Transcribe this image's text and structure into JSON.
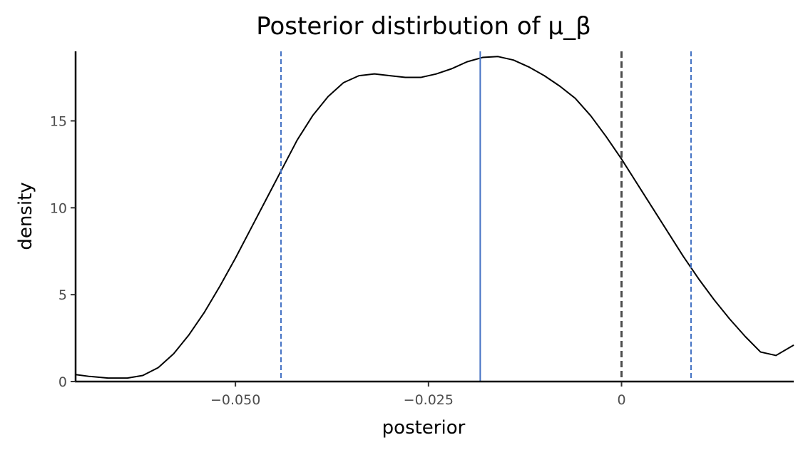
{
  "chart_data": {
    "type": "line",
    "title": "Posterior distirbution of μ_β",
    "xlabel": "posterior",
    "ylabel": "density",
    "xlim": [
      -0.0707,
      0.0223
    ],
    "ylim": [
      0,
      19
    ],
    "x_ticks": [
      {
        "value": -0.05,
        "label": "−0.050"
      },
      {
        "value": -0.025,
        "label": "−0.025"
      },
      {
        "value": 0,
        "label": "0"
      }
    ],
    "y_ticks": [
      {
        "value": 0,
        "label": "0"
      },
      {
        "value": 5,
        "label": "5"
      },
      {
        "value": 10,
        "label": "10"
      },
      {
        "value": 15,
        "label": "15"
      }
    ],
    "grid": false,
    "legend": "none",
    "series": [
      {
        "color": "#000000",
        "x": [
          -0.0707,
          -0.069,
          -0.0665,
          -0.064,
          -0.062,
          -0.06,
          -0.058,
          -0.056,
          -0.054,
          -0.052,
          -0.05,
          -0.048,
          -0.046,
          -0.044,
          -0.042,
          -0.04,
          -0.038,
          -0.036,
          -0.034,
          -0.032,
          -0.03,
          -0.028,
          -0.026,
          -0.024,
          -0.022,
          -0.02,
          -0.018,
          -0.016,
          -0.014,
          -0.012,
          -0.01,
          -0.008,
          -0.006,
          -0.004,
          -0.002,
          0.0,
          0.002,
          0.004,
          0.006,
          0.008,
          0.01,
          0.012,
          0.014,
          0.016,
          0.018,
          0.02,
          0.0223
        ],
        "y": [
          0.4,
          0.3,
          0.2,
          0.2,
          0.35,
          0.8,
          1.6,
          2.7,
          4.0,
          5.5,
          7.1,
          8.8,
          10.5,
          12.2,
          13.9,
          15.3,
          16.4,
          17.2,
          17.6,
          17.7,
          17.6,
          17.5,
          17.5,
          17.7,
          18.0,
          18.4,
          18.65,
          18.7,
          18.5,
          18.1,
          17.6,
          17.0,
          16.3,
          15.3,
          14.1,
          12.8,
          11.4,
          10.0,
          8.6,
          7.2,
          5.9,
          4.7,
          3.6,
          2.6,
          1.7,
          1.5,
          2.1
        ]
      }
    ],
    "reference_lines": [
      {
        "x": -0.0441,
        "color": "#4472c4",
        "style": "dashed"
      },
      {
        "x": -0.0183,
        "color": "#4472c4",
        "style": "solid"
      },
      {
        "x": 0.0,
        "color": "#4d4d4d",
        "style": "dashed"
      },
      {
        "x": 0.009,
        "color": "#4472c4",
        "style": "dashed"
      }
    ]
  }
}
